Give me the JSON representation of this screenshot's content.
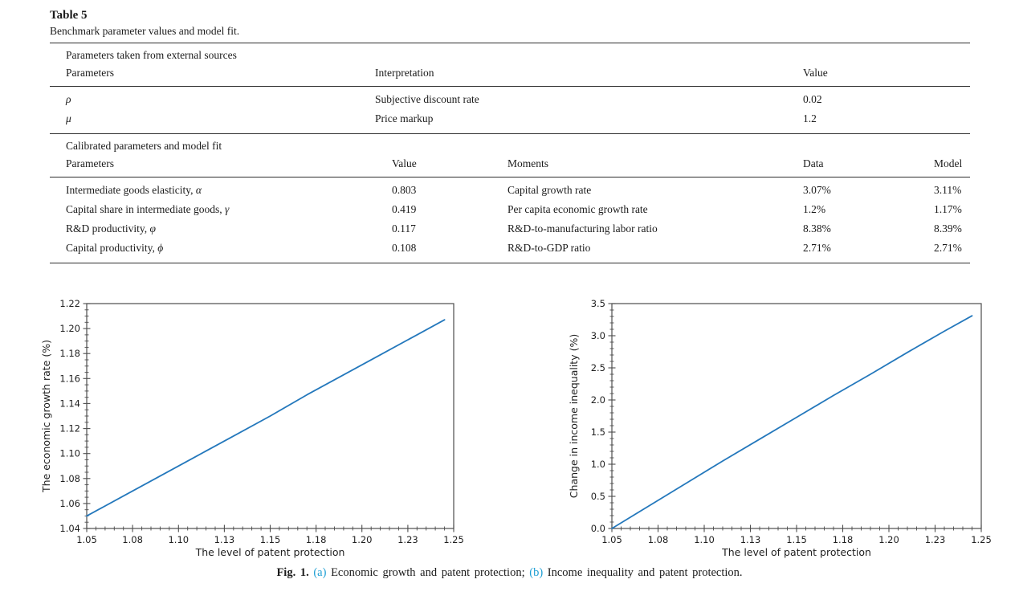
{
  "table": {
    "title": "Table 5",
    "caption": "Benchmark parameter values and model fit.",
    "section_a": {
      "heading": "Parameters taken from external sources",
      "headers": [
        "Parameters",
        "Interpretation",
        "Value"
      ],
      "rows": [
        {
          "symbol": "ρ",
          "interpretation": "Subjective discount rate",
          "value": "0.02"
        },
        {
          "symbol": "μ",
          "interpretation": "Price markup",
          "value": "1.2"
        }
      ]
    },
    "section_b": {
      "heading": "Calibrated parameters and model fit",
      "headers": [
        "Parameters",
        "Value",
        "Moments",
        "Data",
        "Model"
      ],
      "rows": [
        {
          "parameter": "Intermediate goods elasticity, ",
          "symbol": "α",
          "value": "0.803",
          "moment": "Capital growth rate",
          "data": "3.07%",
          "model": "3.11%"
        },
        {
          "parameter": "Capital share in intermediate goods, ",
          "symbol": "γ",
          "value": "0.419",
          "moment": "Per capita economic growth rate",
          "data": "1.2%",
          "model": "1.17%"
        },
        {
          "parameter": "R&D productivity, ",
          "symbol": "φ",
          "value": "0.117",
          "moment": "R&D-to-manufacturing labor ratio",
          "data": "8.38%",
          "model": "8.39%"
        },
        {
          "parameter": "Capital productivity, ",
          "symbol": "ϕ",
          "value": "0.108",
          "moment": "R&D-to-GDP ratio",
          "data": "2.71%",
          "model": "2.71%"
        }
      ]
    }
  },
  "figure_caption": {
    "label": "Fig. 1.",
    "part_a_marker": "(a)",
    "part_a_text": "Economic growth and patent protection;",
    "part_b_marker": "(b)",
    "part_b_text": "Income inequality and patent protection.",
    "link_color": "#1e9fd4"
  },
  "chart_data": [
    {
      "type": "line",
      "name": "economic-growth-vs-patent-protection",
      "xlabel": "The level of patent protection",
      "ylabel": "The economic growth rate (%)",
      "xlim": [
        1.05,
        1.25
      ],
      "ylim": [
        1.04,
        1.22
      ],
      "xticks": [
        1.05,
        1.075,
        1.1,
        1.125,
        1.15,
        1.175,
        1.2,
        1.225,
        1.25
      ],
      "xtick_labels": [
        "1.05",
        "1.08",
        "1.10",
        "1.13",
        "1.15",
        "1.18",
        "1.20",
        "1.23",
        "1.25"
      ],
      "yticks": [
        1.04,
        1.06,
        1.08,
        1.1,
        1.12,
        1.14,
        1.16,
        1.18,
        1.2,
        1.22
      ],
      "ytick_labels": [
        "1.04",
        "1.06",
        "1.08",
        "1.10",
        "1.12",
        "1.14",
        "1.16",
        "1.18",
        "1.20",
        "1.22"
      ],
      "x_minor_step": 0.005,
      "y_minor_step": 0.005,
      "grid": false,
      "box": true,
      "legend": null,
      "line_color": "#2478bc",
      "x": [
        1.05,
        1.07,
        1.09,
        1.11,
        1.13,
        1.15,
        1.17,
        1.19,
        1.21,
        1.23,
        1.245
      ],
      "y": [
        1.05,
        1.066,
        1.082,
        1.098,
        1.114,
        1.13,
        1.147,
        1.163,
        1.179,
        1.195,
        1.207
      ]
    },
    {
      "type": "line",
      "name": "income-inequality-vs-patent-protection",
      "xlabel": "The level of patent protection",
      "ylabel": "Change in income inequality (%)",
      "xlim": [
        1.05,
        1.25
      ],
      "ylim": [
        0.0,
        3.5
      ],
      "xticks": [
        1.05,
        1.075,
        1.1,
        1.125,
        1.15,
        1.175,
        1.2,
        1.225,
        1.25
      ],
      "xtick_labels": [
        "1.05",
        "1.08",
        "1.10",
        "1.13",
        "1.15",
        "1.18",
        "1.20",
        "1.23",
        "1.25"
      ],
      "yticks": [
        0.0,
        0.5,
        1.0,
        1.5,
        2.0,
        2.5,
        3.0,
        3.5
      ],
      "ytick_labels": [
        "0.0",
        "0.5",
        "1.0",
        "1.5",
        "2.0",
        "2.5",
        "3.0",
        "3.5"
      ],
      "x_minor_step": 0.005,
      "y_minor_step": 0.1,
      "grid": false,
      "box": true,
      "legend": null,
      "line_color": "#2478bc",
      "x": [
        1.05,
        1.07,
        1.09,
        1.11,
        1.13,
        1.15,
        1.17,
        1.19,
        1.21,
        1.23,
        1.245
      ],
      "y": [
        0.0,
        0.35,
        0.7,
        1.05,
        1.39,
        1.73,
        2.07,
        2.4,
        2.74,
        3.07,
        3.31
      ]
    }
  ]
}
